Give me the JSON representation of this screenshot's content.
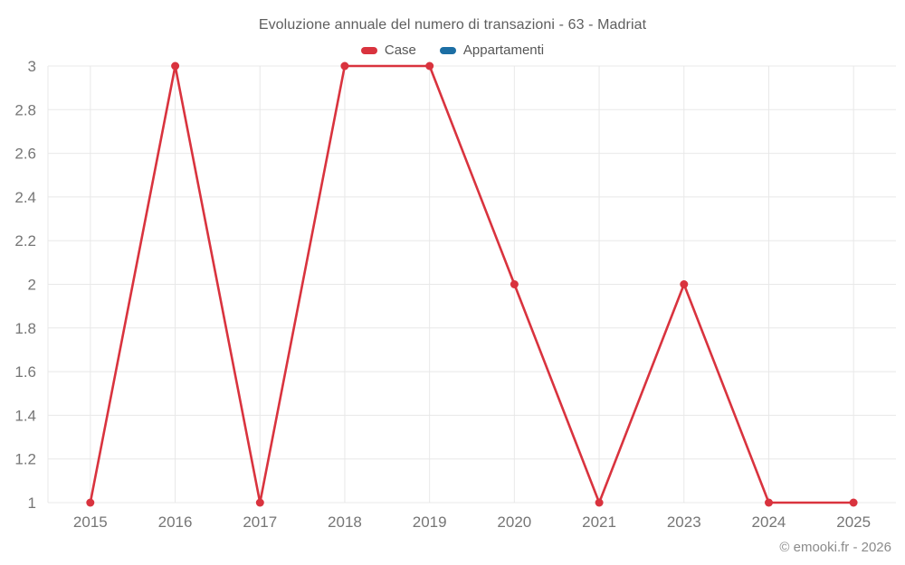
{
  "title": "Evoluzione annuale del numero di transazioni - 63 - Madriat",
  "legend": {
    "items": [
      {
        "label": "Case",
        "color": "#d9333e"
      },
      {
        "label": "Appartamenti",
        "color": "#1c6ea4"
      }
    ]
  },
  "chart_data": {
    "type": "line",
    "title": "Evoluzione annuale del numero di transazioni - 63 - Madriat",
    "categories": [
      "2015",
      "2016",
      "2017",
      "2018",
      "2019",
      "2020",
      "2021",
      "2023",
      "2024",
      "2025"
    ],
    "series": [
      {
        "name": "Case",
        "color": "#d9333e",
        "values": [
          1,
          3,
          1,
          3,
          3,
          2,
          1,
          2,
          1,
          1
        ]
      },
      {
        "name": "Appartamenti",
        "color": "#1c6ea4",
        "values": []
      }
    ],
    "xlabel": "",
    "ylabel": "",
    "ylim": [
      1,
      3
    ],
    "y_ticks": [
      "1",
      "1.2",
      "1.4",
      "1.6",
      "1.8",
      "2",
      "2.2",
      "2.4",
      "2.6",
      "2.8",
      "3"
    ],
    "grid": true,
    "legend_position": "top",
    "marker": "circle"
  },
  "footer": {
    "credit": "© emooki.fr - 2026"
  },
  "colors": {
    "grid": "#e8e8e8",
    "tick_text": "#767676",
    "title_text": "#5e5e5e",
    "background": "#ffffff"
  }
}
